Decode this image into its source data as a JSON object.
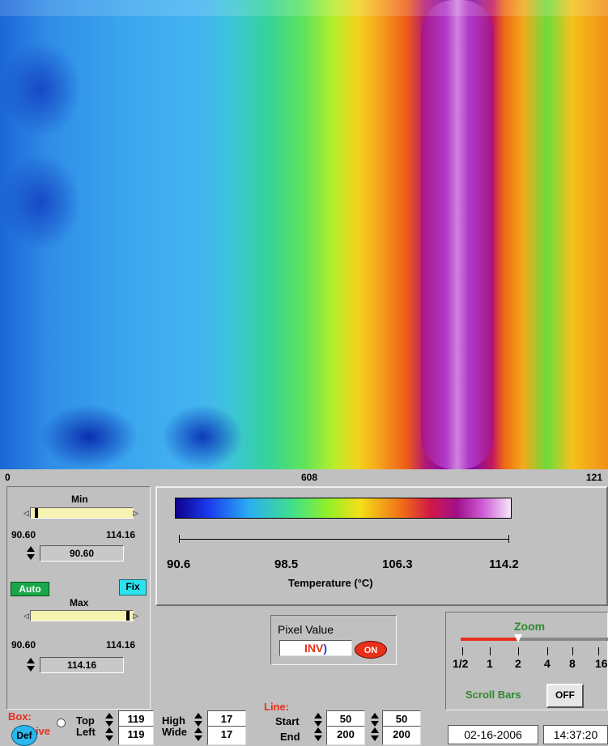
{
  "image_axis": {
    "left": "0",
    "mid": "608",
    "right": "121"
  },
  "min_panel": {
    "label": "Min",
    "range_low": "90.60",
    "range_high": "114.16",
    "value": "90.60",
    "fraction": 0.0
  },
  "max_panel": {
    "label": "Max",
    "range_low": "90.60",
    "range_high": "114.16",
    "value": "114.16",
    "fraction": 1.0
  },
  "buttons": {
    "auto": "Auto",
    "fix": "Fix",
    "def": "Def",
    "on": "ON",
    "off": "OFF"
  },
  "colorbar": {
    "ticks": [
      "90.6",
      "98.5",
      "106.3",
      "114.2"
    ],
    "label": "Temperature (°C)"
  },
  "pixel_value": {
    "title": "Pixel Value",
    "value": "INV",
    "cursor": ")"
  },
  "zoom": {
    "title": "Zoom",
    "ticks": [
      "1/2",
      "1",
      "2",
      "4",
      "8",
      "16"
    ],
    "selected_index": 2
  },
  "scroll_bars": {
    "label": "Scroll Bars"
  },
  "box": {
    "label": "Box:",
    "live_label": "Live",
    "top_label": "Top",
    "top": "119",
    "left_label": "Left",
    "left": "119",
    "high_label": "High",
    "high": "17",
    "wide_label": "Wide",
    "wide": "17"
  },
  "line": {
    "label": "Line:",
    "start_label": "Start",
    "start_1": "50",
    "start_2": "50",
    "end_label": "End",
    "end_1": "200",
    "end_2": "200"
  },
  "status": {
    "date": "02-16-2006",
    "time": "14:37:20"
  },
  "colors": {
    "accent_red": "#e8301a",
    "auto_green": "#18a84a",
    "fix_cyan": "#29e3ee"
  }
}
